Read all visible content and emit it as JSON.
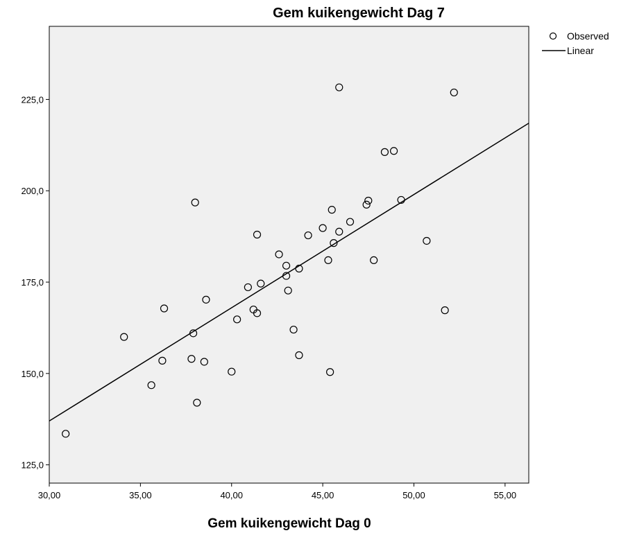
{
  "chart_data": {
    "type": "scatter",
    "title": "Gem kuikengewicht Dag 7",
    "xlabel": "Gem kuikengewicht Dag 0",
    "ylabel": "",
    "xlim": [
      30,
      56.3
    ],
    "ylim": [
      120,
      245
    ],
    "x_ticks": [
      "30,00",
      "35,00",
      "40,00",
      "45,00",
      "50,00",
      "55,00"
    ],
    "x_tick_values": [
      30,
      35,
      40,
      45,
      50,
      55
    ],
    "y_ticks": [
      "125,0",
      "150,0",
      "175,0",
      "200,0",
      "225,0"
    ],
    "y_tick_values": [
      125,
      150,
      175,
      200,
      225
    ],
    "grid": false,
    "legend_position": "top-right",
    "background_color": "#f0f0f0",
    "series": [
      {
        "name": "Observed",
        "marker": "open-circle",
        "x": [
          30.9,
          34.1,
          35.6,
          36.2,
          36.3,
          37.8,
          37.9,
          38.0,
          38.1,
          38.5,
          38.6,
          40.0,
          40.3,
          40.9,
          41.2,
          41.4,
          41.4,
          41.6,
          42.6,
          43.0,
          43.0,
          43.1,
          43.4,
          43.7,
          43.7,
          44.2,
          45.0,
          45.3,
          45.4,
          45.5,
          45.6,
          45.9,
          45.9,
          46.5,
          47.4,
          47.5,
          47.8,
          48.4,
          48.9,
          49.3,
          50.7,
          51.7,
          52.2
        ],
        "y": [
          133.5,
          160.0,
          146.8,
          153.5,
          167.8,
          154.0,
          161.0,
          196.8,
          142.0,
          153.2,
          170.2,
          150.5,
          164.8,
          173.6,
          167.5,
          188.0,
          166.5,
          174.6,
          182.6,
          179.5,
          176.7,
          172.7,
          162.0,
          155.0,
          178.7,
          187.8,
          189.8,
          181.0,
          150.4,
          194.8,
          185.7,
          188.8,
          228.3,
          191.5,
          196.2,
          197.3,
          181.0,
          210.6,
          210.9,
          197.5,
          186.3,
          167.3,
          226.9
        ]
      },
      {
        "name": "Linear",
        "type": "line",
        "x": [
          30,
          56.3
        ],
        "y": [
          137.0,
          218.5
        ]
      }
    ]
  }
}
